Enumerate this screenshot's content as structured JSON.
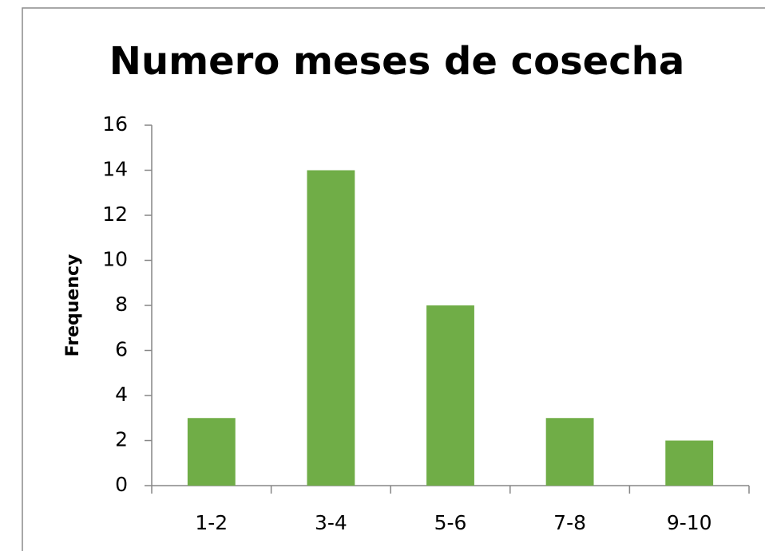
{
  "chart_data": {
    "type": "bar",
    "title": "Numero meses de cosecha",
    "y_label": "Frequency",
    "categories": [
      "1-2",
      "3-4",
      "5-6",
      "7-8",
      "9-10"
    ],
    "values": [
      3,
      14,
      8,
      3,
      2
    ],
    "color": "#70ad47",
    "ylim": [
      0,
      16
    ],
    "yticks": [
      0,
      2,
      4,
      6,
      8,
      10,
      12,
      14,
      16
    ],
    "grid": false
  }
}
